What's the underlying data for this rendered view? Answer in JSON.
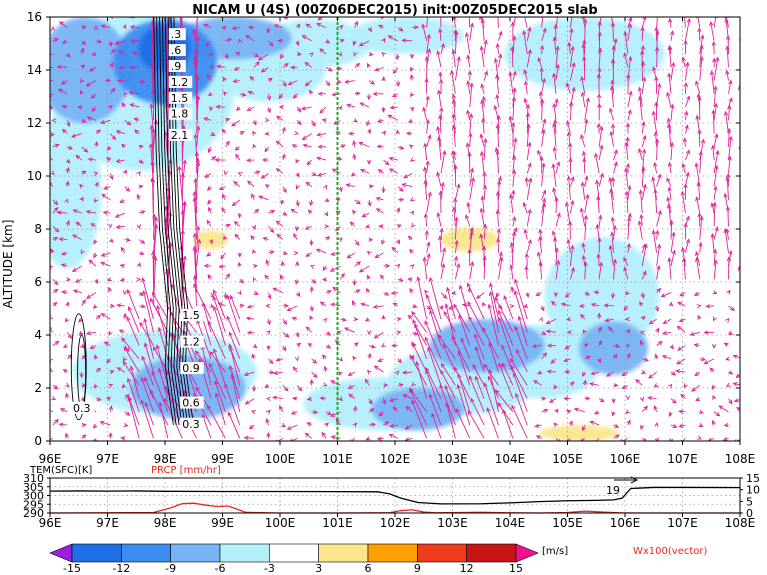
{
  "title": "NICAM U (4S) (00Z06DEC2015) init:00Z05DEC2015 slab",
  "chart_data": [
    {
      "type": "heatmap",
      "title": "NICAM U (4S) (00Z06DEC2015) init:00Z05DEC2015 slab",
      "xlabel": "",
      "ylabel": "ALTITUDE [km]",
      "xlim": [
        96,
        108
      ],
      "ylim": [
        0,
        16
      ],
      "x_ticks": [
        "96E",
        "97E",
        "98E",
        "99E",
        "100E",
        "101E",
        "102E",
        "103E",
        "104E",
        "105E",
        "106E",
        "107E",
        "108E"
      ],
      "y_ticks": [
        "0",
        "2",
        "4",
        "6",
        "8",
        "10",
        "12",
        "14",
        "16"
      ],
      "grid": true,
      "marker_line": {
        "x": 101.0,
        "color": "#22aa22",
        "style": "dashed"
      },
      "colorbar": {
        "levels": [
          "-15",
          "-12",
          "-9",
          "-6",
          "-3",
          "3",
          "6",
          "9",
          "12",
          "15"
        ],
        "colors": [
          "#9a1fe0",
          "#1e6ee6",
          "#3c8cf0",
          "#78b4f5",
          "#b4f0fa",
          "#ffffff",
          "#fae68c",
          "#ffa000",
          "#f03c1e",
          "#c81414",
          "#f0148c"
        ],
        "unit": "[m/s]",
        "vector_label": "Wx100(vector)"
      },
      "blobs": [
        {
          "x": 96.6,
          "z": 14.0,
          "rx": 0.8,
          "rz": 2.0,
          "u": -8
        },
        {
          "x": 97.6,
          "z": 13.2,
          "rx": 1.6,
          "rz": 3.0,
          "u": -6
        },
        {
          "x": 98.0,
          "z": 14.3,
          "rx": 0.9,
          "rz": 1.6,
          "u": -12
        },
        {
          "x": 98.0,
          "z": 14.8,
          "rx": 0.45,
          "rz": 0.9,
          "u": -15
        },
        {
          "x": 99.2,
          "z": 15.2,
          "rx": 1.0,
          "rz": 0.8,
          "u": -8
        },
        {
          "x": 99.8,
          "z": 14.0,
          "rx": 1.0,
          "rz": 1.2,
          "u": -6
        },
        {
          "x": 100.6,
          "z": 15.0,
          "rx": 1.0,
          "rz": 0.9,
          "u": -6
        },
        {
          "x": 102.0,
          "z": 14.2,
          "rx": 1.3,
          "rz": 1.6,
          "u": -3
        },
        {
          "x": 102.2,
          "z": 15.3,
          "rx": 1.0,
          "rz": 0.7,
          "u": -6
        },
        {
          "x": 103.5,
          "z": 13.0,
          "rx": 1.0,
          "rz": 1.6,
          "u": -3
        },
        {
          "x": 105.3,
          "z": 14.6,
          "rx": 1.4,
          "rz": 1.4,
          "u": -6
        },
        {
          "x": 107.4,
          "z": 12.5,
          "rx": 0.8,
          "rz": 3.0,
          "u": -3
        },
        {
          "x": 96.3,
          "z": 9.5,
          "rx": 0.6,
          "rz": 3.0,
          "u": -6
        },
        {
          "x": 97.2,
          "z": 8.5,
          "rx": 1.0,
          "rz": 3.0,
          "u": -3
        },
        {
          "x": 96.4,
          "z": 5.0,
          "rx": 0.5,
          "rz": 1.6,
          "u": -3
        },
        {
          "x": 98.3,
          "z": 6.0,
          "rx": 0.6,
          "rz": 3.0,
          "u": -3
        },
        {
          "x": 98.0,
          "z": 2.6,
          "rx": 1.6,
          "rz": 1.6,
          "u": -6
        },
        {
          "x": 98.4,
          "z": 2.0,
          "rx": 1.0,
          "rz": 1.2,
          "u": -9
        },
        {
          "x": 99.0,
          "z": 1.5,
          "rx": 1.6,
          "rz": 1.2,
          "u": -3
        },
        {
          "x": 100.6,
          "z": 1.0,
          "rx": 1.4,
          "rz": 0.9,
          "u": -3
        },
        {
          "x": 101.8,
          "z": 1.4,
          "rx": 1.4,
          "rz": 1.0,
          "u": -6
        },
        {
          "x": 102.4,
          "z": 1.2,
          "rx": 0.8,
          "rz": 0.8,
          "u": -9
        },
        {
          "x": 103.2,
          "z": 2.3,
          "rx": 1.3,
          "rz": 1.3,
          "u": -6
        },
        {
          "x": 103.6,
          "z": 3.6,
          "rx": 1.0,
          "rz": 1.0,
          "u": -9
        },
        {
          "x": 104.0,
          "z": 6.0,
          "rx": 1.2,
          "rz": 2.4,
          "u": -3
        },
        {
          "x": 104.6,
          "z": 3.0,
          "rx": 1.0,
          "rz": 1.4,
          "u": -6
        },
        {
          "x": 105.6,
          "z": 5.5,
          "rx": 1.0,
          "rz": 2.2,
          "u": -6
        },
        {
          "x": 105.8,
          "z": 3.5,
          "rx": 0.6,
          "rz": 1.0,
          "u": -9
        },
        {
          "x": 106.8,
          "z": 5.0,
          "rx": 1.4,
          "rz": 2.5,
          "u": -3
        },
        {
          "x": 107.5,
          "z": 2.5,
          "rx": 0.6,
          "rz": 1.2,
          "u": -3
        },
        {
          "x": 98.8,
          "z": 7.6,
          "rx": 0.3,
          "rz": 0.35,
          "u": 3
        },
        {
          "x": 103.3,
          "z": 7.6,
          "rx": 0.5,
          "rz": 0.45,
          "u": 3
        },
        {
          "x": 105.2,
          "z": 0.3,
          "rx": 0.7,
          "rz": 0.3,
          "u": 3
        }
      ],
      "contour_labels": [
        {
          "x": 98.1,
          "z": 15.2,
          "text": ".3"
        },
        {
          "x": 98.1,
          "z": 14.6,
          "text": ".6"
        },
        {
          "x": 98.1,
          "z": 14.0,
          "text": ".9"
        },
        {
          "x": 98.1,
          "z": 13.4,
          "text": "1.2"
        },
        {
          "x": 98.1,
          "z": 12.8,
          "text": "1.5"
        },
        {
          "x": 98.1,
          "z": 12.2,
          "text": "1.8"
        },
        {
          "x": 98.1,
          "z": 11.4,
          "text": "2.1"
        },
        {
          "x": 98.3,
          "z": 4.6,
          "text": "1.5"
        },
        {
          "x": 98.3,
          "z": 3.6,
          "text": "1.2"
        },
        {
          "x": 98.3,
          "z": 2.6,
          "text": "0.9"
        },
        {
          "x": 98.3,
          "z": 1.3,
          "text": "0.6"
        },
        {
          "x": 98.3,
          "z": 0.5,
          "text": "0.3"
        },
        {
          "x": 96.4,
          "z": 1.1,
          "text": "0.3"
        }
      ]
    },
    {
      "type": "line",
      "x_ticks": [
        "96E",
        "97E",
        "98E",
        "99E",
        "100E",
        "101E",
        "102E",
        "103E",
        "104E",
        "105E",
        "106E",
        "107E",
        "108E"
      ],
      "left_axis": {
        "label": "TEM(SFC)[K]",
        "ticks": [
          "290",
          "295",
          "300",
          "305",
          "310"
        ],
        "ylim": [
          290,
          310
        ]
      },
      "right_axis": {
        "label": "PRCP [mm/hr]",
        "ticks": [
          "0",
          "5",
          "10",
          "15"
        ],
        "ylim": [
          0,
          15
        ]
      },
      "series": [
        {
          "name": "TEM(SFC)[K]",
          "axis": "left",
          "color": "#000000",
          "x": [
            96,
            96.5,
            97,
            97.5,
            98,
            99,
            100,
            101,
            101.7,
            101.9,
            102.1,
            102.4,
            102.8,
            103.5,
            104,
            104.5,
            105,
            105.5,
            105.8,
            105.95,
            106.1,
            106.5,
            107,
            108
          ],
          "y": [
            302.5,
            302.6,
            302.5,
            302.6,
            302.4,
            302.3,
            302.3,
            302.2,
            302.1,
            301.0,
            298.5,
            296.0,
            295.2,
            295.3,
            295.8,
            296.5,
            297.0,
            297.2,
            297.5,
            298.5,
            304.0,
            304.6,
            304.6,
            304.5
          ]
        },
        {
          "name": "PRCP [mm/hr]",
          "axis": "right",
          "color": "#e8281e",
          "x": [
            96,
            97,
            97.8,
            98.1,
            98.3,
            98.5,
            98.7,
            98.9,
            99.1,
            99.4,
            100,
            101,
            101.9,
            102.1,
            102.3,
            102.5,
            102.7,
            103.5,
            104,
            104.5,
            105,
            105.3,
            105.6,
            105.9,
            106.2,
            107,
            108
          ],
          "y": [
            0.0,
            0.1,
            0.2,
            2.2,
            4.0,
            4.2,
            3.4,
            2.8,
            3.0,
            0.3,
            0.0,
            0.0,
            0.1,
            1.0,
            1.4,
            0.4,
            0.1,
            0.3,
            0.1,
            0.0,
            0.2,
            0.8,
            0.4,
            0.1,
            0.0,
            0.0,
            0.0
          ]
        }
      ],
      "annotation": "19"
    }
  ]
}
